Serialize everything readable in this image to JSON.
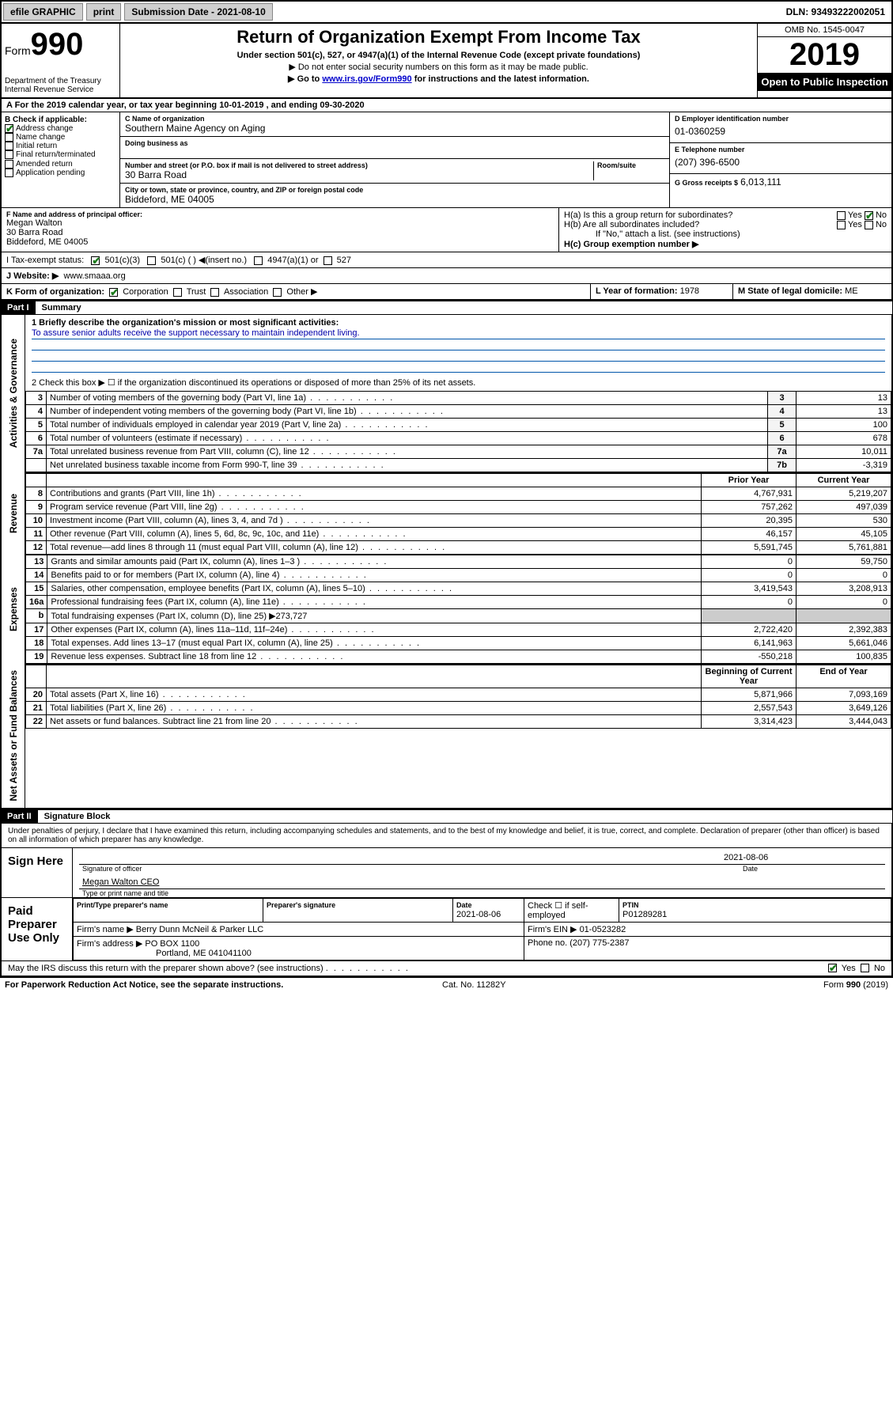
{
  "topbar": {
    "efile": "efile GRAPHIC",
    "print": "print",
    "submission": "Submission Date - 2021-08-10",
    "dln": "DLN: 93493222002051"
  },
  "header": {
    "form_prefix": "Form",
    "form_no": "990",
    "dept1": "Department of the Treasury",
    "dept2": "Internal Revenue Service",
    "title": "Return of Organization Exempt From Income Tax",
    "subtitle": "Under section 501(c), 527, or 4947(a)(1) of the Internal Revenue Code (except private foundations)",
    "instr1": "▶ Do not enter social security numbers on this form as it may be made public.",
    "instr2_pre": "▶ Go to ",
    "instr2_link": "www.irs.gov/Form990",
    "instr2_post": " for instructions and the latest information.",
    "omb": "OMB No. 1545-0047",
    "year": "2019",
    "open": "Open to Public Inspection"
  },
  "rowA": "A For the 2019 calendar year, or tax year beginning 10-01-2019   , and ending 09-30-2020",
  "boxB": {
    "label": "B Check if applicable:",
    "items": [
      {
        "txt": "Address change",
        "checked": true
      },
      {
        "txt": "Name change",
        "checked": false
      },
      {
        "txt": "Initial return",
        "checked": false
      },
      {
        "txt": "Final return/terminated",
        "checked": false
      },
      {
        "txt": "Amended return",
        "checked": false
      },
      {
        "txt": "Application pending",
        "checked": false
      }
    ]
  },
  "boxC": {
    "name_label": "C Name of organization",
    "name": "Southern Maine Agency on Aging",
    "dba_label": "Doing business as",
    "addr_label": "Number and street (or P.O. box if mail is not delivered to street address)",
    "room_label": "Room/suite",
    "addr": "30 Barra Road",
    "city_label": "City or town, state or province, country, and ZIP or foreign postal code",
    "city": "Biddeford, ME  04005"
  },
  "boxD": {
    "label": "D Employer identification number",
    "val": "01-0360259"
  },
  "boxE": {
    "label": "E Telephone number",
    "val": "(207) 396-6500"
  },
  "boxG": {
    "label": "G Gross receipts $",
    "val": "6,013,111"
  },
  "boxF": {
    "label": "F  Name and address of principal officer:",
    "line1": "Megan Walton",
    "line2": "30 Barra Road",
    "line3": "Biddeford, ME  04005"
  },
  "boxH": {
    "ha": "H(a)  Is this a group return for subordinates?",
    "hb": "H(b)  Are all subordinates included?",
    "hb_note": "If \"No,\" attach a list. (see instructions)",
    "hc": "H(c)  Group exemption number ▶",
    "yes": "Yes",
    "no": "No"
  },
  "rowI": {
    "label": "I    Tax-exempt status:",
    "opt1": "501(c)(3)",
    "opt2": "501(c) (  ) ◀(insert no.)",
    "opt3": "4947(a)(1) or",
    "opt4": "527"
  },
  "rowJ": {
    "label": "J   Website: ▶",
    "val": "www.smaaa.org"
  },
  "rowK": {
    "label": "K Form of organization:",
    "opts": [
      "Corporation",
      "Trust",
      "Association",
      "Other ▶"
    ]
  },
  "rowL": {
    "label": "L Year of formation:",
    "val": "1978"
  },
  "rowM": {
    "label": "M State of legal domicile:",
    "val": "ME"
  },
  "partI": {
    "hdr": "Part I",
    "title": "Summary"
  },
  "summary": {
    "line1_label": "1  Briefly describe the organization's mission or most significant activities:",
    "mission": "To assure senior adults receive the support necessary to maintain independent living.",
    "line2": "2   Check this box ▶ ☐  if the organization discontinued its operations or disposed of more than 25% of its net assets.",
    "rows_a": [
      {
        "n": "3",
        "t": "Number of voting members of the governing body (Part VI, line 1a)",
        "b": "3",
        "v": "13"
      },
      {
        "n": "4",
        "t": "Number of independent voting members of the governing body (Part VI, line 1b)",
        "b": "4",
        "v": "13"
      },
      {
        "n": "5",
        "t": "Total number of individuals employed in calendar year 2019 (Part V, line 2a)",
        "b": "5",
        "v": "100"
      },
      {
        "n": "6",
        "t": "Total number of volunteers (estimate if necessary)",
        "b": "6",
        "v": "678"
      },
      {
        "n": "7a",
        "t": "Total unrelated business revenue from Part VIII, column (C), line 12",
        "b": "7a",
        "v": "10,011"
      },
      {
        "n": "",
        "t": "Net unrelated business taxable income from Form 990-T, line 39",
        "b": "7b",
        "v": "-3,319"
      }
    ],
    "col_prior": "Prior Year",
    "col_current": "Current Year",
    "revenue": [
      {
        "n": "8",
        "t": "Contributions and grants (Part VIII, line 1h)",
        "p": "4,767,931",
        "c": "5,219,207"
      },
      {
        "n": "9",
        "t": "Program service revenue (Part VIII, line 2g)",
        "p": "757,262",
        "c": "497,039"
      },
      {
        "n": "10",
        "t": "Investment income (Part VIII, column (A), lines 3, 4, and 7d )",
        "p": "20,395",
        "c": "530"
      },
      {
        "n": "11",
        "t": "Other revenue (Part VIII, column (A), lines 5, 6d, 8c, 9c, 10c, and 11e)",
        "p": "46,157",
        "c": "45,105"
      },
      {
        "n": "12",
        "t": "Total revenue—add lines 8 through 11 (must equal Part VIII, column (A), line 12)",
        "p": "5,591,745",
        "c": "5,761,881"
      }
    ],
    "expenses": [
      {
        "n": "13",
        "t": "Grants and similar amounts paid (Part IX, column (A), lines 1–3 )",
        "p": "0",
        "c": "59,750"
      },
      {
        "n": "14",
        "t": "Benefits paid to or for members (Part IX, column (A), line 4)",
        "p": "0",
        "c": "0"
      },
      {
        "n": "15",
        "t": "Salaries, other compensation, employee benefits (Part IX, column (A), lines 5–10)",
        "p": "3,419,543",
        "c": "3,208,913"
      },
      {
        "n": "16a",
        "t": "Professional fundraising fees (Part IX, column (A), line 11e)",
        "p": "0",
        "c": "0"
      },
      {
        "n": "b",
        "t": "Total fundraising expenses (Part IX, column (D), line 25) ▶273,727",
        "p": "",
        "c": ""
      },
      {
        "n": "17",
        "t": "Other expenses (Part IX, column (A), lines 11a–11d, 11f–24e)",
        "p": "2,722,420",
        "c": "2,392,383"
      },
      {
        "n": "18",
        "t": "Total expenses. Add lines 13–17 (must equal Part IX, column (A), line 25)",
        "p": "6,141,963",
        "c": "5,661,046"
      },
      {
        "n": "19",
        "t": "Revenue less expenses. Subtract line 18 from line 12",
        "p": "-550,218",
        "c": "100,835"
      }
    ],
    "col_begin": "Beginning of Current Year",
    "col_end": "End of Year",
    "netassets": [
      {
        "n": "20",
        "t": "Total assets (Part X, line 16)",
        "p": "5,871,966",
        "c": "7,093,169"
      },
      {
        "n": "21",
        "t": "Total liabilities (Part X, line 26)",
        "p": "2,557,543",
        "c": "3,649,126"
      },
      {
        "n": "22",
        "t": "Net assets or fund balances. Subtract line 21 from line 20",
        "p": "3,314,423",
        "c": "3,444,043"
      }
    ],
    "side_gov": "Activities & Governance",
    "side_rev": "Revenue",
    "side_exp": "Expenses",
    "side_net": "Net Assets or Fund Balances"
  },
  "partII": {
    "hdr": "Part II",
    "title": "Signature Block"
  },
  "sig": {
    "perjury": "Under penalties of perjury, I declare that I have examined this return, including accompanying schedules and statements, and to the best of my knowledge and belief, it is true, correct, and complete. Declaration of preparer (other than officer) is based on all information of which preparer has any knowledge.",
    "sign_here": "Sign Here",
    "sig_officer_label": "Signature of officer",
    "date1": "2021-08-06",
    "date_label": "Date",
    "officer_name": "Megan Walton CEO",
    "officer_name_label": "Type or print name and title",
    "paid": "Paid Preparer Use Only",
    "prep_name_label": "Print/Type preparer's name",
    "prep_sig_label": "Preparer's signature",
    "prep_date": "2021-08-06",
    "check_self": "Check ☐ if self-employed",
    "ptin_label": "PTIN",
    "ptin": "P01289281",
    "firm_name_label": "Firm's name    ▶",
    "firm_name": "Berry Dunn McNeil & Parker LLC",
    "firm_ein_label": "Firm's EIN ▶",
    "firm_ein": "01-0523282",
    "firm_addr_label": "Firm's address ▶",
    "firm_addr1": "PO BOX 1100",
    "firm_addr2": "Portland, ME  041041100",
    "firm_phone_label": "Phone no.",
    "firm_phone": "(207) 775-2387",
    "discuss": "May the IRS discuss this return with the preparer shown above? (see instructions)",
    "yes": "Yes",
    "no": "No"
  },
  "footer": {
    "left": "For Paperwork Reduction Act Notice, see the separate instructions.",
    "mid": "Cat. No. 11282Y",
    "right": "Form 990 (2019)"
  }
}
